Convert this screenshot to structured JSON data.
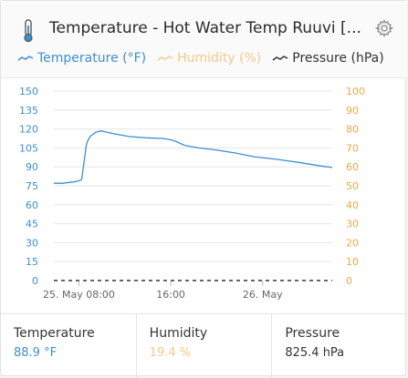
{
  "header": {
    "title": "Temperature - Hot Water Temp Ruuvi [...",
    "thermometer_icon": "thermometer-icon",
    "settings_icon": "gear-icon"
  },
  "legend": [
    {
      "label": "Temperature (°F)",
      "color": "#3d8fd1"
    },
    {
      "label": "Humidity (%)",
      "color": "#f5c98a"
    },
    {
      "label": "Pressure (hPa)",
      "color": "#333333"
    }
  ],
  "chart_data": {
    "type": "line",
    "x_ticks": [
      "25. May 08:00",
      "16:00",
      "26. May"
    ],
    "y_left": {
      "min": 0,
      "max": 150,
      "ticks": [
        "0",
        "15",
        "30",
        "45",
        "60",
        "75",
        "90",
        "105",
        "120",
        "135",
        "150"
      ],
      "color": "#3d8fd1"
    },
    "y_right": {
      "min": 0,
      "max": 100,
      "ticks": [
        "0",
        "10",
        "20",
        "30",
        "40",
        "50",
        "60",
        "70",
        "80",
        "90",
        "100"
      ],
      "color": "#e8a94a"
    },
    "grid": true,
    "series": [
      {
        "name": "Temperature (°F)",
        "axis": "left",
        "color": "#3d8fd1",
        "x": [
          0,
          0.03,
          0.07,
          0.09,
          0.1,
          0.11,
          0.115,
          0.12,
          0.13,
          0.15,
          0.17,
          0.19,
          0.22,
          0.27,
          0.33,
          0.39,
          0.42,
          0.44,
          0.47,
          0.52,
          0.58,
          0.65,
          0.72,
          0.8,
          0.88,
          0.95,
          1.0
        ],
        "y": [
          77,
          77,
          78,
          79,
          80,
          96,
          105,
          110,
          114,
          117.5,
          118.5,
          117.5,
          116,
          114,
          113,
          112.5,
          111.5,
          110,
          107,
          105,
          103.5,
          101,
          98,
          96,
          93.5,
          91,
          89.5
        ]
      },
      {
        "name": "Humidity (%)",
        "axis": "right",
        "color": "#f5c98a",
        "x": [],
        "y": []
      },
      {
        "name": "Pressure (hPa)",
        "axis": "left",
        "color": "#333333",
        "dashed": true,
        "x": [
          0,
          1
        ],
        "y": [
          0,
          0
        ]
      }
    ]
  },
  "stats": [
    {
      "label": "Temperature",
      "value": "88.9 °F",
      "color": "#3d8fd1"
    },
    {
      "label": "Humidity",
      "value": "19.4 %",
      "color": "#f5c98a"
    },
    {
      "label": "Pressure",
      "value": "825.4 hPa",
      "color": "#333333"
    }
  ]
}
